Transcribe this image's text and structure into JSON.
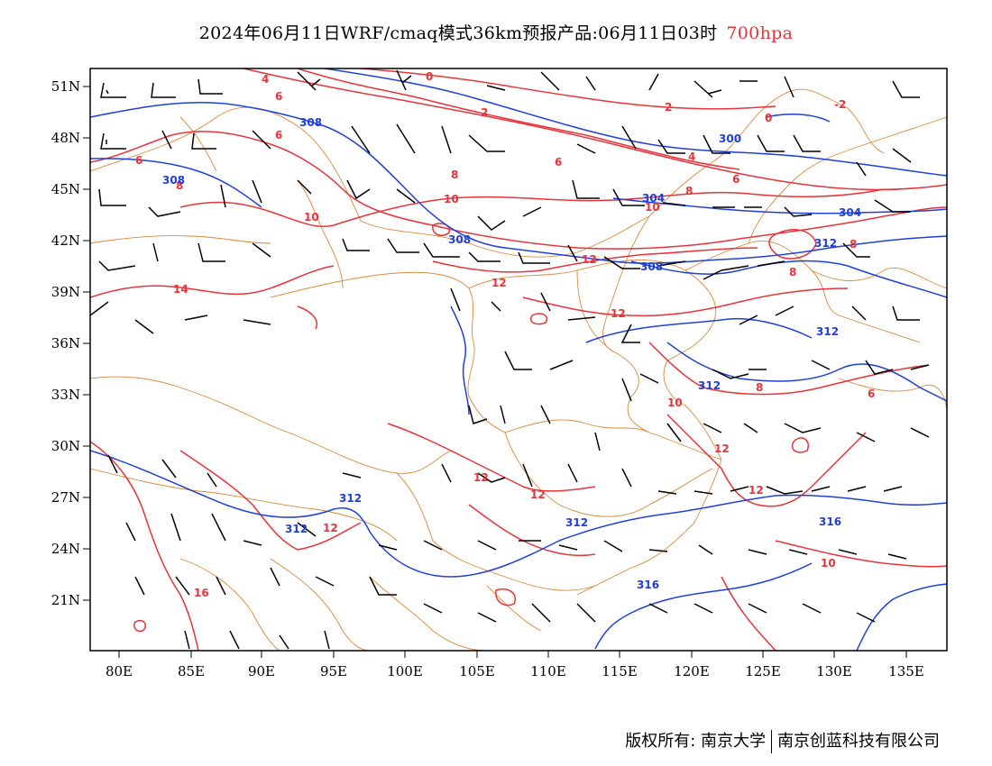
{
  "title": {
    "main": "2024年06月11日WRF/cmaq模式36km预报产品:06月11日03时",
    "level": "700hpa"
  },
  "axes": {
    "lon_labels": [
      "80E",
      "85E",
      "90E",
      "95E",
      "100E",
      "105E",
      "110E",
      "115E",
      "120E",
      "125E",
      "130E",
      "135E"
    ],
    "lat_labels": [
      "51N",
      "48N",
      "45N",
      "42N",
      "39N",
      "36N",
      "33N",
      "30N",
      "27N",
      "24N",
      "21N"
    ]
  },
  "contours": {
    "temperature_labels": [
      "4",
      "6",
      "0",
      "2",
      "2",
      "0",
      "-2",
      "6",
      "6",
      "8",
      "8",
      "10",
      "10",
      "6",
      "4",
      "8",
      "6",
      "10",
      "12",
      "12",
      "12",
      "14",
      "8",
      "8",
      "12",
      "12",
      "12",
      "12",
      "10",
      "10",
      "8",
      "6",
      "16",
      "12"
    ],
    "height_labels": [
      "308",
      "300",
      "304",
      "308",
      "304",
      "308",
      "308",
      "312",
      "312",
      "312",
      "312",
      "316",
      "316",
      "312",
      "312"
    ]
  },
  "colors": {
    "temperature": "#e8333a",
    "height": "#1f3fdc",
    "boundary": "#d98a3a",
    "wind": "#000000"
  },
  "footer": {
    "left": "版权所有: 南京大学",
    "right": "南京创蓝科技有限公司"
  }
}
